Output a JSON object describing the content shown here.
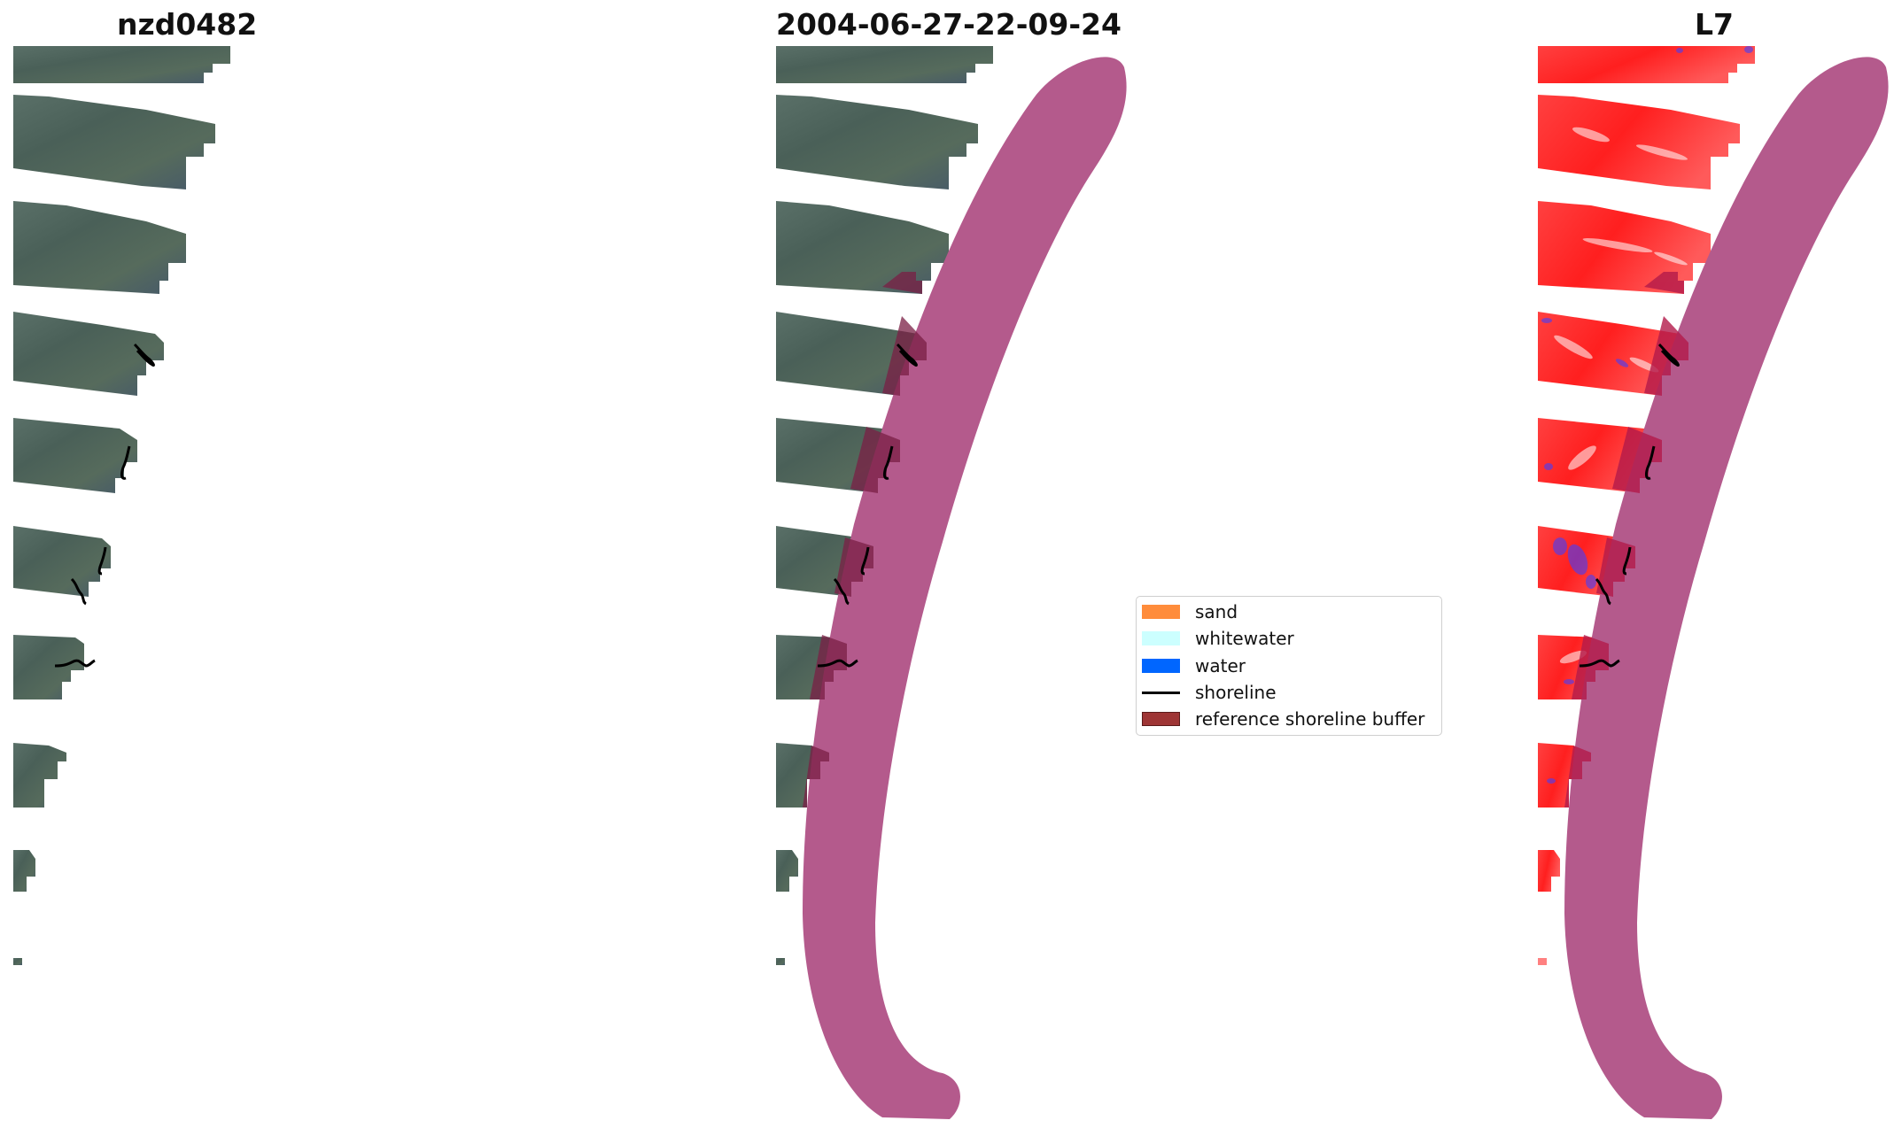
{
  "titles": {
    "left": "nzd0482",
    "middle": "2004-06-27-22-09-24",
    "right": "L7"
  },
  "legend": {
    "items": [
      {
        "label": "sand",
        "kind": "patch",
        "color": "#ff8c3b"
      },
      {
        "label": "whitewater",
        "kind": "patch",
        "color": "#ccffff"
      },
      {
        "label": "water",
        "kind": "patch",
        "color": "#0066ff"
      },
      {
        "label": "shoreline",
        "kind": "line",
        "color": "#000000"
      },
      {
        "label": "reference shoreline buffer",
        "kind": "patch",
        "color": "#9e3535"
      }
    ]
  },
  "colors": {
    "rgb_tile": "#4f6660",
    "buffer": "#b45a8c",
    "index_positive": "#ff2a2a",
    "index_negative": "#3a3aff"
  }
}
